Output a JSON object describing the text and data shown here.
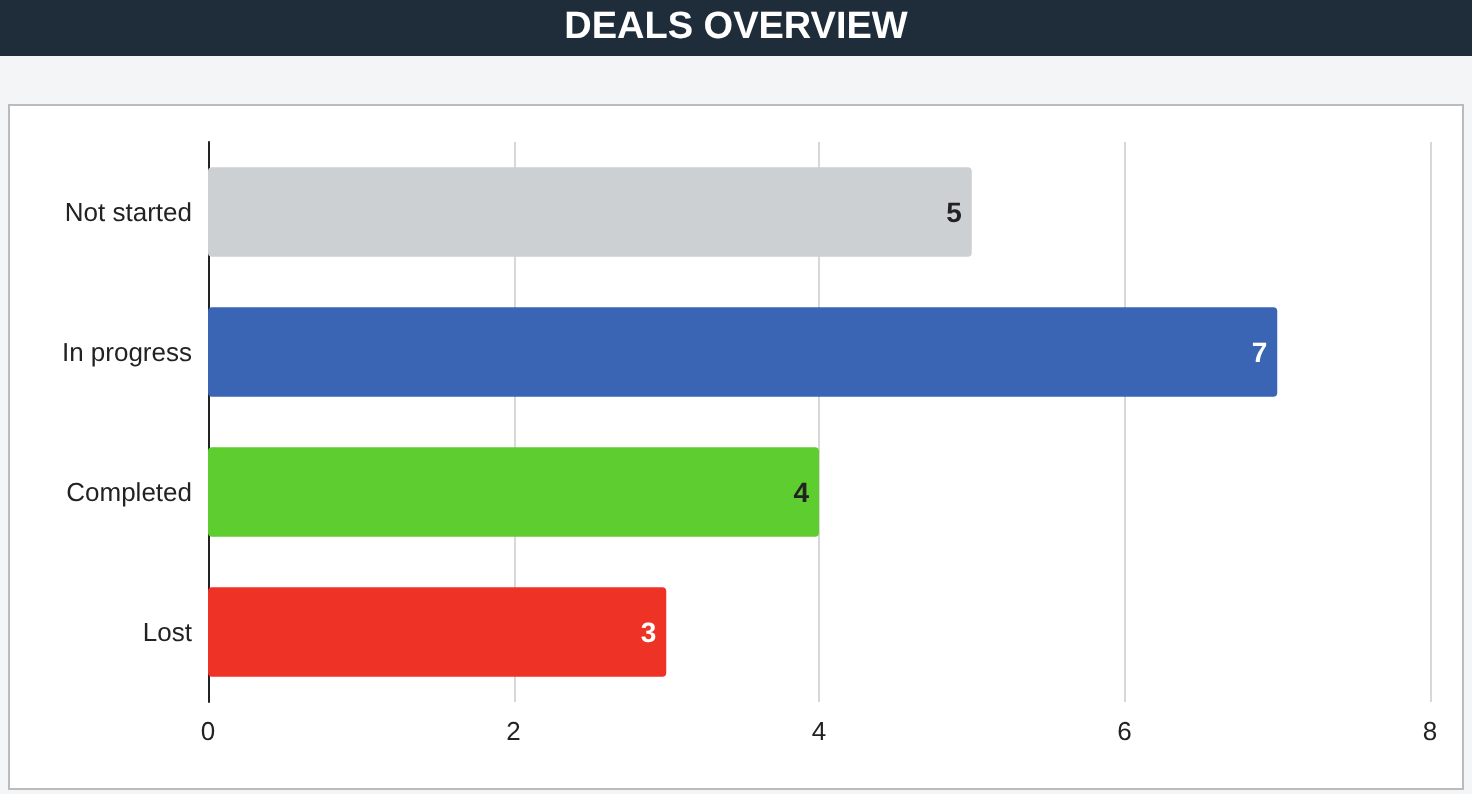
{
  "chart_data": {
    "type": "bar",
    "title": "DEALS OVERVIEW",
    "orientation": "horizontal",
    "categories": [
      "Not started",
      "In progress",
      "Completed",
      "Lost"
    ],
    "values": [
      5,
      7,
      4,
      3
    ],
    "colors": [
      "#ccd0d3",
      "#3a64b4",
      "#5ecd2f",
      "#ef3226"
    ],
    "xlim": [
      0,
      8
    ],
    "xticks": [
      0,
      2,
      4,
      6,
      8
    ],
    "grid": "x",
    "data_labels": true
  }
}
